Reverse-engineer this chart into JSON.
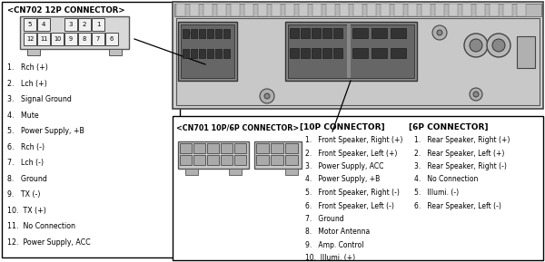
{
  "bg_color": "#ffffff",
  "title_cn702": "<CN702 12P CONNECTOR>",
  "cn702_top_labels": [
    "5",
    "4",
    "",
    "3",
    "2",
    "1"
  ],
  "cn702_bot_labels": [
    "12",
    "11",
    "10",
    "9",
    "8",
    "7",
    "6"
  ],
  "cn702_list": [
    "1.   Rch (+)",
    "2.   Lch (+)",
    "3.   Signal Ground",
    "4.   Mute",
    "5.   Power Supply, +B",
    "6.   Rch (-)",
    "7.   Lch (-)",
    "8.   Ground",
    "9.   TX (-)",
    "10.  TX (+)",
    "11.  No Connection",
    "12.  Power Supply, ACC"
  ],
  "title_cn701": "<CN701 10P/6P CONNECTOR>",
  "title_10p": "[10P CONNECTOR]",
  "title_6p": "[6P CONNECTOR]",
  "list_10p": [
    "1.   Front Speaker, Right (+)",
    "2.   Front Speaker, Left (+)",
    "3.   Power Supply, ACC",
    "4.   Power Supply, +B",
    "5.   Front Speaker, Right (-)",
    "6.   Front Speaker, Left (-)",
    "7.   Ground",
    "8.   Motor Antenna",
    "9.   Amp. Control",
    "10.  Illumi. (+)"
  ],
  "list_6p": [
    "1.   Rear Speaker, Right (+)",
    "2.   Rear Speaker, Left (+)",
    "3.   Rear Speaker, Right (-)",
    "4.   No Connection",
    "5.   Illumi. (-)",
    "6.   Rear Speaker, Left (-)"
  ]
}
